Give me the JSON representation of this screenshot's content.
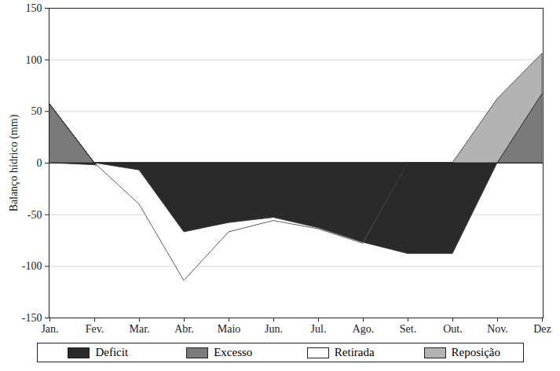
{
  "chart_data": {
    "type": "area",
    "stacked": true,
    "ylabel": "Balanço hídrico (mm)",
    "categories": [
      "Jan.",
      "Fev.",
      "Mar.",
      "Abr.",
      "Maio",
      "Jun.",
      "Jul.",
      "Ago.",
      "Set.",
      "Out.",
      "Nov.",
      "Dez"
    ],
    "series": [
      {
        "name": "Deficit",
        "color": "#2a2a2a",
        "values": [
          0,
          -2,
          -7,
          -67,
          -58,
          -53,
          -63,
          -77,
          -88,
          -88,
          0,
          0
        ]
      },
      {
        "name": "Excesso",
        "color": "#7a7a7a",
        "values": [
          57,
          0,
          0,
          0,
          0,
          0,
          0,
          0,
          0,
          0,
          0,
          67
        ]
      },
      {
        "name": "Retirada",
        "color": "#ffffff",
        "values": [
          0,
          0,
          -33,
          -47,
          -9,
          -3,
          -1,
          -1,
          0,
          0,
          0,
          0
        ]
      },
      {
        "name": "Reposição",
        "color": "#b3b3b3",
        "values": [
          0,
          0,
          0,
          0,
          0,
          0,
          0,
          0,
          0,
          0,
          62,
          39
        ]
      }
    ],
    "ylim": [
      -150,
      150
    ],
    "yticks": [
      -150,
      -100,
      -50,
      0,
      50,
      100,
      150
    ],
    "grid": true,
    "legend": "bottom"
  }
}
